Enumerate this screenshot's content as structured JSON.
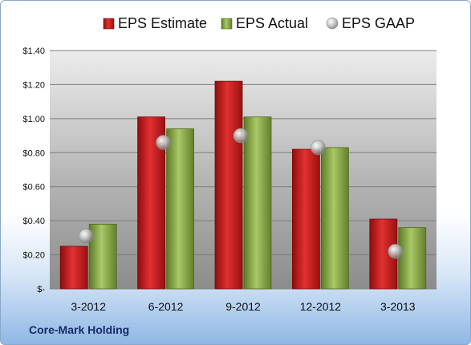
{
  "chart_data": {
    "type": "bar",
    "categories": [
      "3-2012",
      "6-2012",
      "9-2012",
      "12-2012",
      "3-2013"
    ],
    "series": [
      {
        "name": "EPS Estimate",
        "values": [
          0.25,
          1.01,
          1.22,
          0.82,
          0.41
        ],
        "color": "#cc1a1a"
      },
      {
        "name": "EPS Actual",
        "values": [
          0.38,
          0.94,
          1.01,
          0.83,
          0.36
        ],
        "color": "#8db04a"
      },
      {
        "name": "EPS GAAP",
        "values": [
          0.31,
          0.86,
          0.9,
          0.83,
          0.22
        ],
        "color": "#b8b8b8",
        "mark": "point"
      }
    ],
    "yticks": [
      "$-",
      "$0.20",
      "$0.40",
      "$0.60",
      "$0.80",
      "$1.00",
      "$1.20",
      "$1.40"
    ],
    "ylim": [
      0,
      1.4
    ],
    "grid": true,
    "legend": "top"
  },
  "company": "Core-Mark Holding"
}
